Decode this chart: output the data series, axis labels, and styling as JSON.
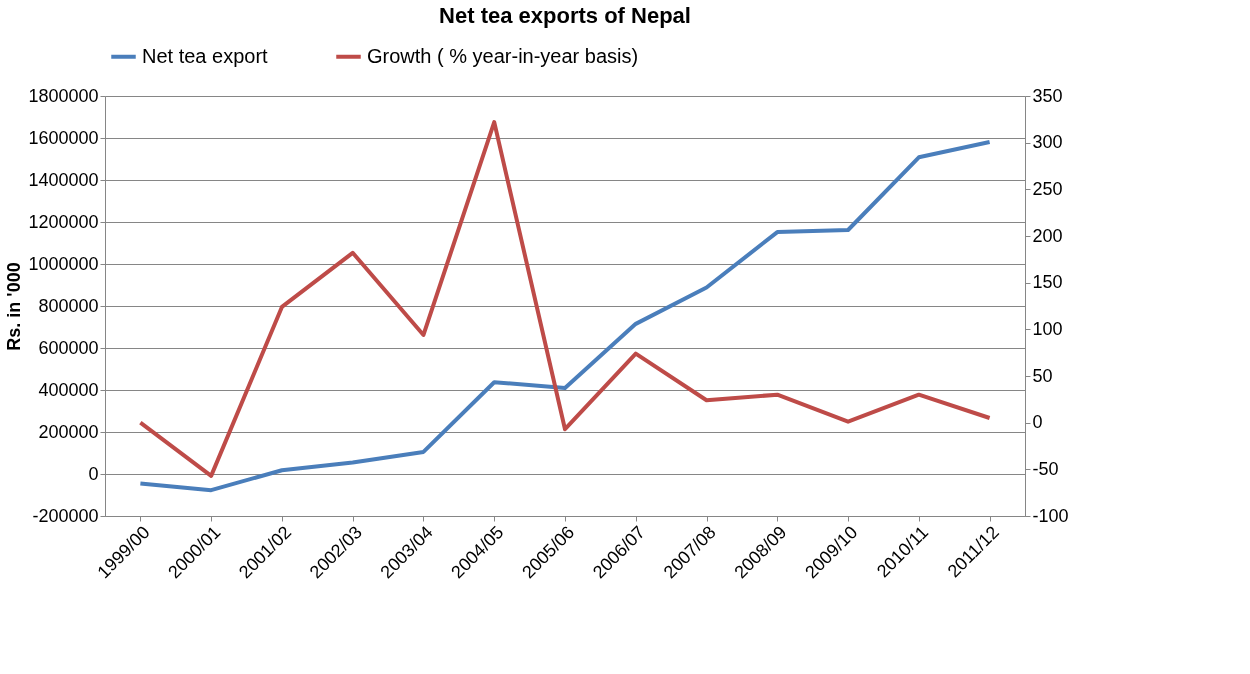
{
  "chart_data": {
    "type": "line",
    "title": "Net tea exports of Nepal",
    "ylabel": "Rs. in '000",
    "categories": [
      "1999/00",
      "2000/01",
      "2001/02",
      "2002/03",
      "2003/04",
      "2004/05",
      "2005/06",
      "2006/07",
      "2007/08",
      "2008/09",
      "2009/10",
      "2010/11",
      "2011/12"
    ],
    "series": [
      {
        "name": "Net tea export",
        "color": "#4a7ebb",
        "values": [
          -45000,
          -77000,
          18000,
          55000,
          105000,
          437000,
          410000,
          715000,
          888000,
          1152000,
          1162000,
          1508000,
          1581000
        ]
      },
      {
        "name": "Growth ( % year-in-year basis)",
        "color": "#be4b48",
        "axis": "y2",
        "values": [
          0,
          -57,
          124,
          182,
          94,
          322,
          -7,
          74,
          24,
          30,
          1,
          30,
          5
        ]
      }
    ],
    "ylim": [
      -200000,
      1800000
    ],
    "yticks": [
      -200000,
      0,
      200000,
      400000,
      600000,
      800000,
      1000000,
      1200000,
      1400000,
      1600000,
      1800000
    ],
    "y2lim": [
      -100,
      350
    ],
    "y2ticks": [
      -100,
      -50,
      0,
      50,
      100,
      150,
      200,
      250,
      300,
      350
    ],
    "grid": "y",
    "legend": "top",
    "marker": "none",
    "line_style": "solid"
  }
}
